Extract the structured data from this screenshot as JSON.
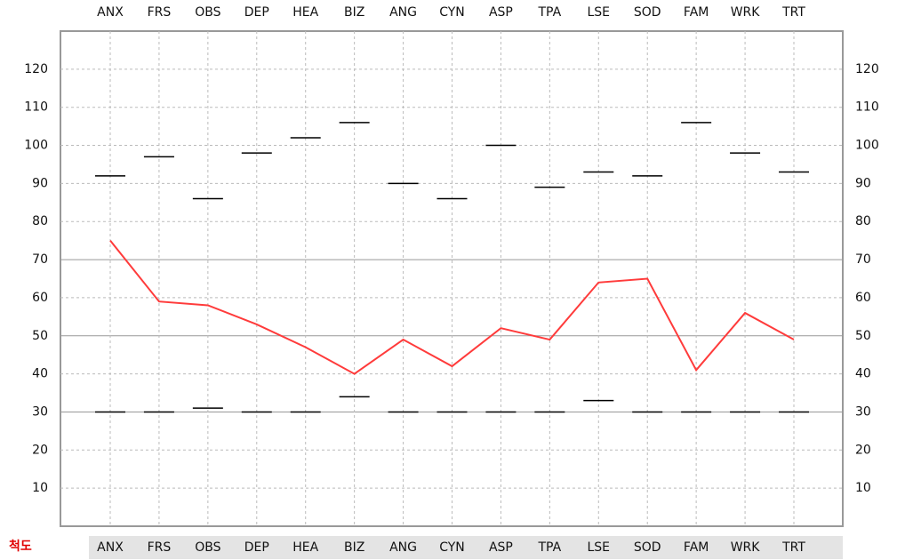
{
  "chart_data": {
    "type": "line",
    "categories": [
      "ANX",
      "FRS",
      "OBS",
      "DEP",
      "HEA",
      "BIZ",
      "ANG",
      "CYN",
      "ASP",
      "TPA",
      "LSE",
      "SOD",
      "FAM",
      "WRK",
      "TRT"
    ],
    "row_label": "척도",
    "series": [
      {
        "color": "#ff3b3b",
        "style": "line",
        "values": [
          75,
          59,
          58,
          53,
          47,
          40,
          49,
          42,
          52,
          49,
          64,
          65,
          41,
          56,
          49
        ]
      },
      {
        "color": "#000000",
        "style": "dash",
        "values": [
          92,
          97,
          86,
          98,
          102,
          106,
          90,
          86,
          100,
          89,
          93,
          92,
          106,
          98,
          93
        ]
      },
      {
        "color": "#000000",
        "style": "dash",
        "values": [
          30,
          30,
          31,
          30,
          30,
          34,
          30,
          30,
          30,
          30,
          33,
          30,
          30,
          30,
          30
        ]
      }
    ],
    "ylim": [
      0,
      130
    ],
    "yticks": [
      10,
      20,
      30,
      40,
      50,
      60,
      70,
      80,
      90,
      100,
      110,
      120
    ],
    "solid_gridlines": [
      30,
      50,
      70
    ],
    "grid": true
  }
}
